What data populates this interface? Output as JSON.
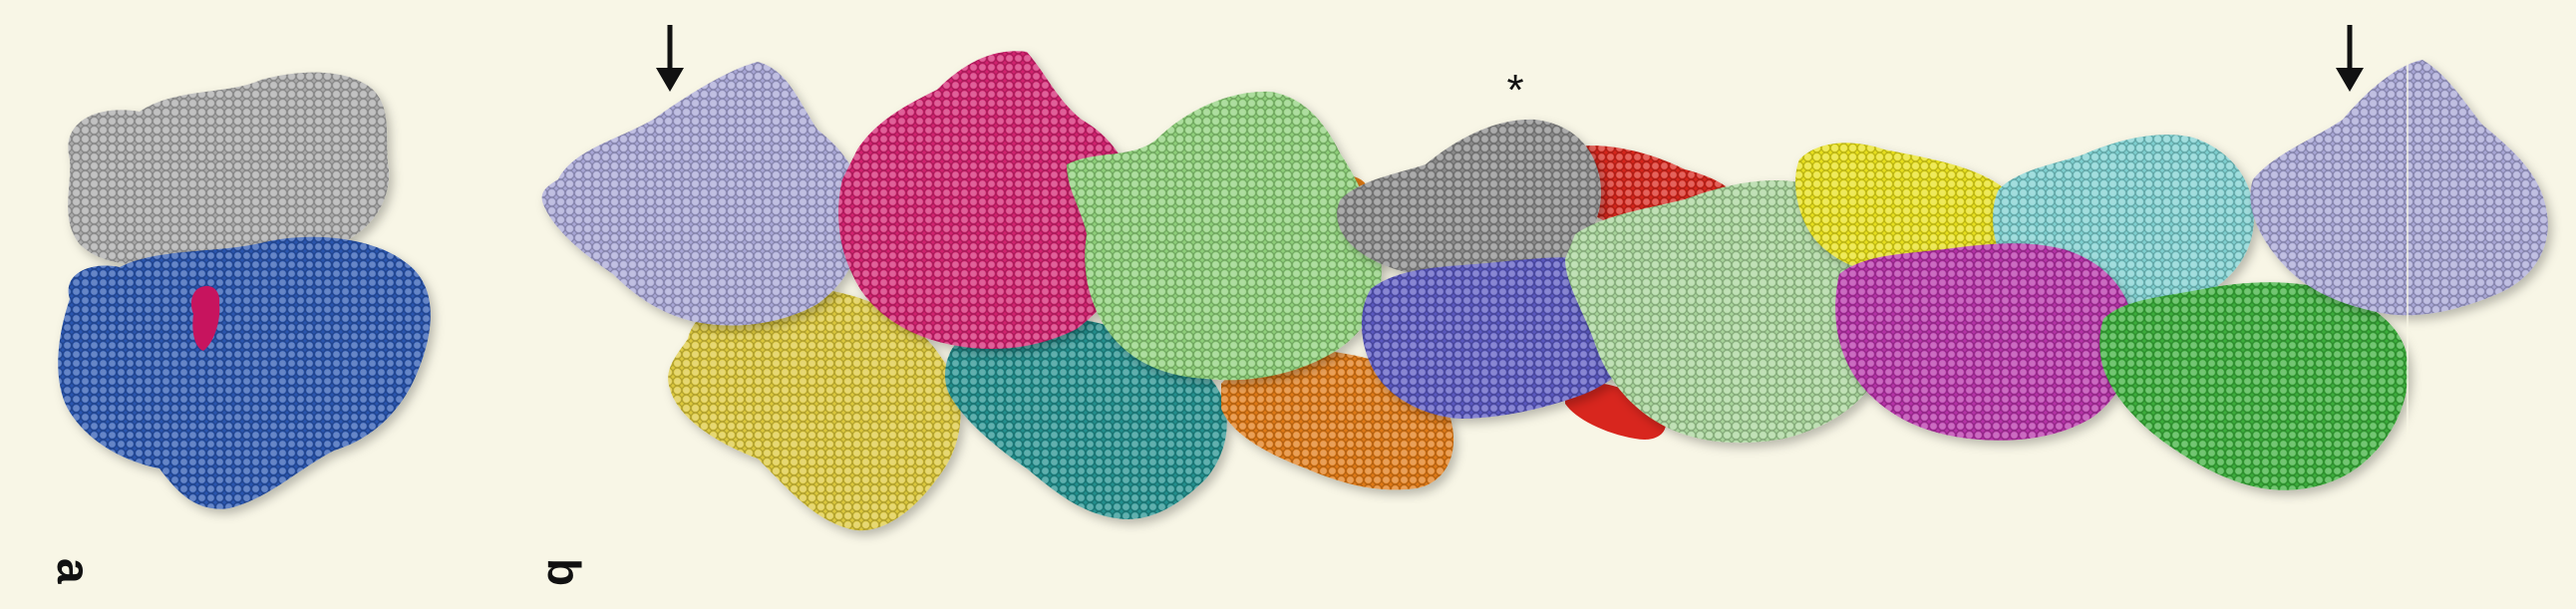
{
  "panels": {
    "a": {
      "label": "a"
    },
    "b": {
      "label": "b"
    }
  },
  "annotations": {
    "asterisk": "*"
  },
  "colors": {
    "background": "#f8f6e6",
    "gray": "#a9a9a9",
    "blue": "#2b57b0",
    "lavender": "#a8a6d6",
    "magenta": "#d3226f",
    "yellow": "#dcc83a",
    "teal": "#23908e",
    "light-green": "#8ed07a",
    "orange": "#e07a14",
    "dark-gray": "#8a8a8a",
    "red": "#d8261e",
    "indigo": "#5a58c0",
    "pale-green": "#a7d49a",
    "lemon": "#e8e01e",
    "cyan": "#7ed0d0",
    "purple": "#b632a8",
    "green": "#3aae3a"
  }
}
